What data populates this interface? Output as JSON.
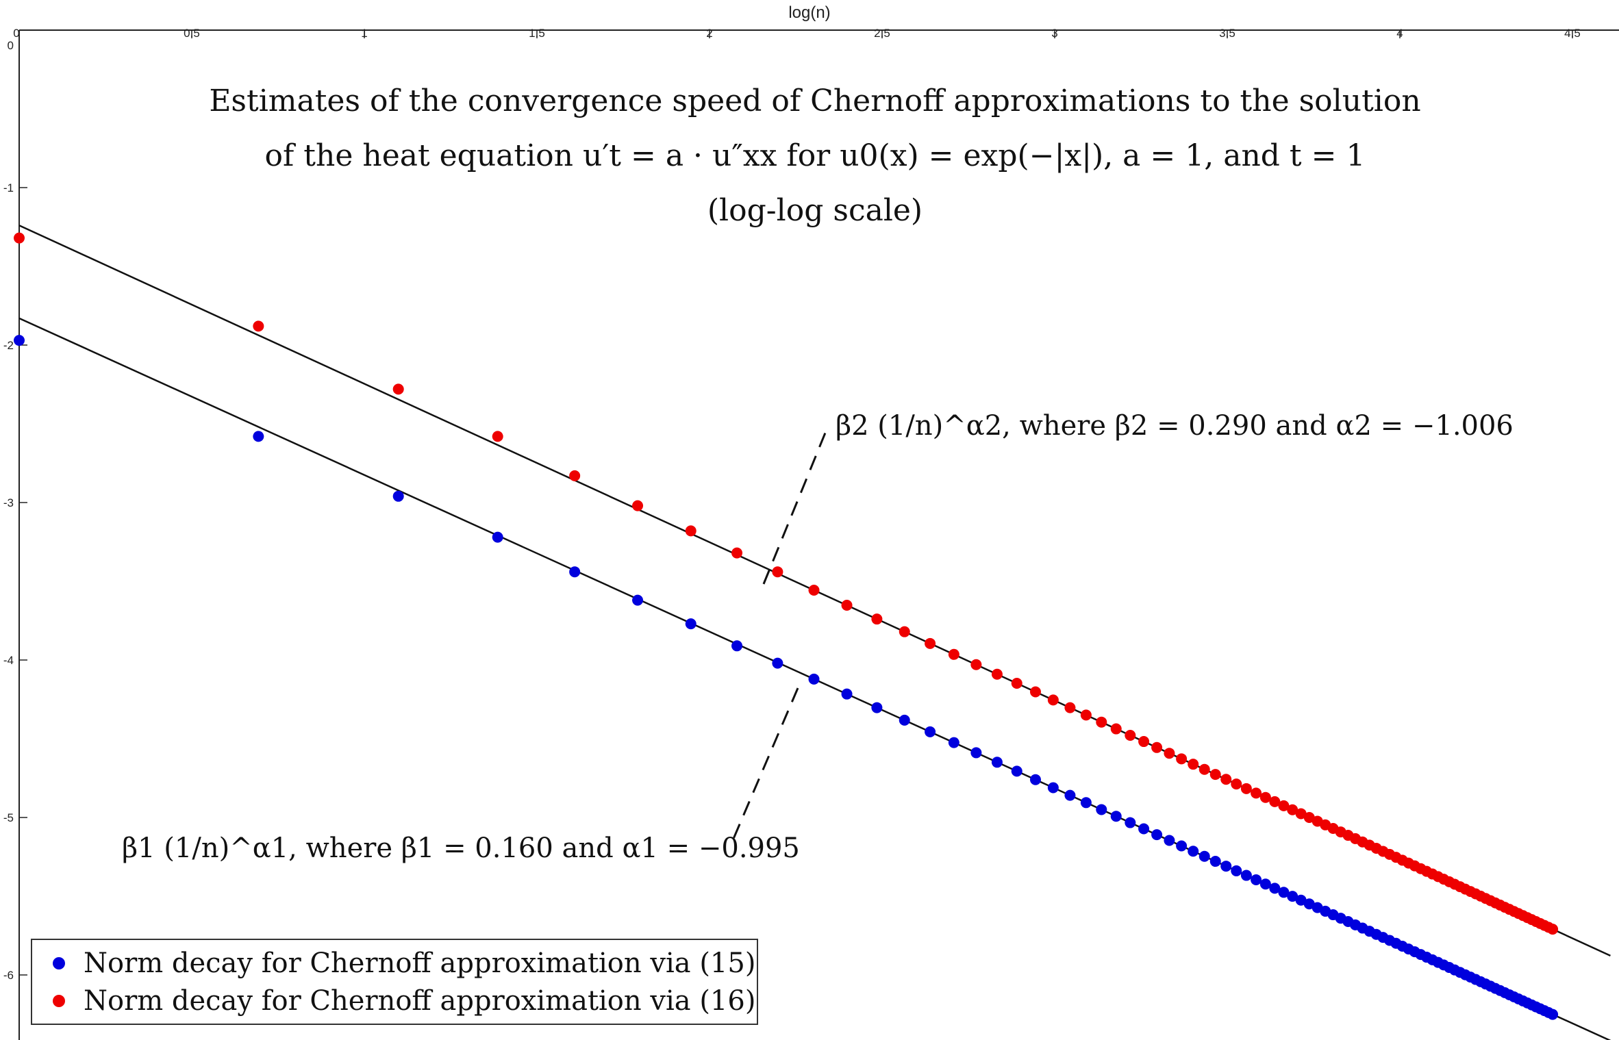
{
  "chart_data": {
    "type": "scatter",
    "title": [
      "Estimates of the convergence speed of Chernoff approximations to the solution",
      "of the heat equation u′t = a · u″xx for u0(x) = exp(−|x|), a = 1, and t = 1",
      "(log-log scale)"
    ],
    "xlabel": "log(n)",
    "ylabel": "",
    "xlim": [
      0,
      4.61
    ],
    "ylim": [
      -6.25,
      0
    ],
    "x_ticks": [
      0,
      0.5,
      1,
      1.5,
      2,
      2.5,
      3,
      3.5,
      4,
      4.5
    ],
    "x_tick_labels": [
      "0",
      "0.5",
      "1",
      "1.5",
      "2",
      "2.5",
      "3",
      "3.5",
      "4",
      "4.5"
    ],
    "y_ticks": [
      0,
      -1,
      -2,
      -3,
      -4,
      -5,
      -6
    ],
    "y_tick_labels": [
      "0",
      "-1",
      "-2",
      "-3",
      "-4",
      "-5",
      "-6"
    ],
    "grid": false,
    "legend_position": "bottom-left",
    "n_range": [
      1,
      85
    ],
    "series": [
      {
        "name": "Norm decay for Chernoff approximation via (15)",
        "color": "#0000dd",
        "first_points": [
          [
            0,
            -1.97
          ],
          [
            0.693,
            -2.58
          ],
          [
            1.099,
            -2.96
          ],
          [
            1.386,
            -3.22
          ],
          [
            1.609,
            -3.44
          ],
          [
            1.792,
            -3.62
          ],
          [
            1.946,
            -3.77
          ],
          [
            2.079,
            -3.91
          ],
          [
            2.197,
            -4.02
          ]
        ],
        "fit": {
          "intercept": -1.83,
          "slope": -0.995
        }
      },
      {
        "name": "Norm decay for Chernoff approximation via (16)",
        "color": "#ee0000",
        "first_points": [
          [
            0,
            -1.32
          ],
          [
            0.693,
            -1.88
          ],
          [
            1.099,
            -2.28
          ],
          [
            1.386,
            -2.58
          ],
          [
            1.609,
            -2.83
          ],
          [
            1.792,
            -3.02
          ],
          [
            1.946,
            -3.18
          ],
          [
            2.079,
            -3.32
          ],
          [
            2.197,
            -3.44
          ]
        ],
        "fit": {
          "intercept": -1.24,
          "slope": -1.006
        }
      }
    ],
    "annotations": [
      {
        "id": "fit2",
        "text": "β2 (1/n)^α2, where β2 = 0.290 and α2 = −1.006"
      },
      {
        "id": "fit1",
        "text": "β1 (1/n)^α1, where β1 = 0.160 and α1 = −0.995"
      }
    ]
  }
}
